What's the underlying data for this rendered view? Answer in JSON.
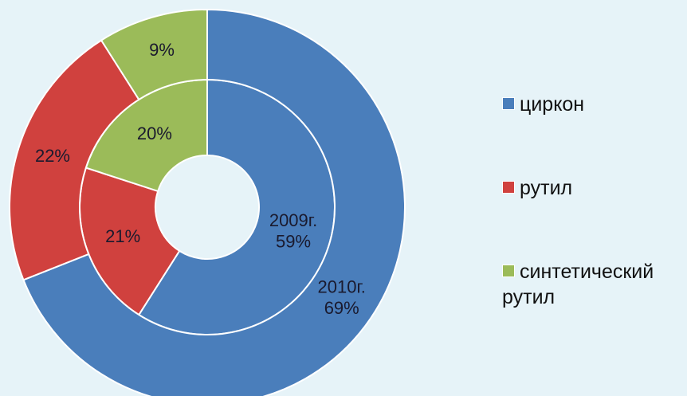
{
  "chart_data": {
    "type": "doughnut",
    "categories": [
      "циркон",
      "рутил",
      "синтетический рутил"
    ],
    "colors": [
      "#4a7ebb",
      "#d0413e",
      "#9bbb59"
    ],
    "series": [
      {
        "name": "2009г.",
        "values": [
          59,
          21,
          20
        ],
        "value_labels": [
          "59%",
          "21%",
          "20%"
        ]
      },
      {
        "name": "2010г.",
        "values": [
          69,
          22,
          9
        ],
        "value_labels": [
          "69%",
          "22%",
          "9%"
        ]
      }
    ],
    "legend": "right"
  }
}
